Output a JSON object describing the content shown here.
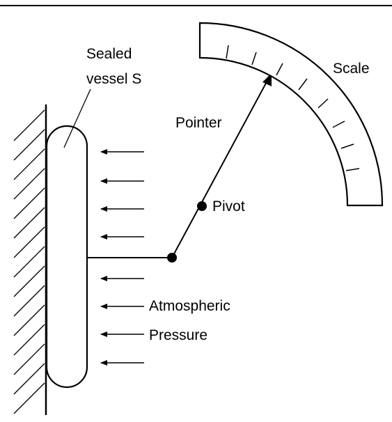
{
  "labels": {
    "vessel_line1": "Sealed",
    "vessel_line2": "vessel S",
    "scale": "Scale",
    "pointer": "Pointer",
    "pivot": "Pivot",
    "atmos_line1": "Atmospheric",
    "atmos_line2": "Pressure"
  },
  "colors": {
    "ink": "#000000",
    "background": "#ffffff"
  }
}
